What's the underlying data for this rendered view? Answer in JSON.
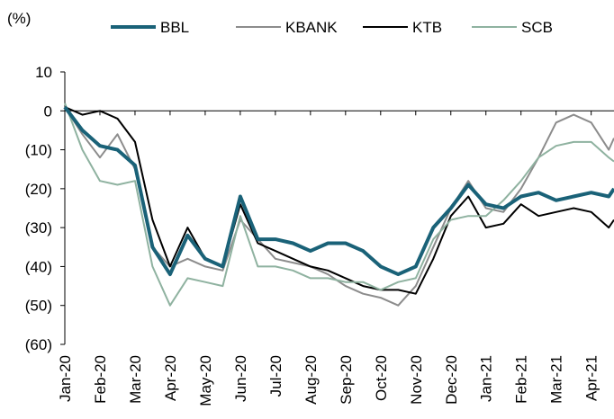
{
  "chart_data": {
    "type": "line",
    "y_label": "(%)",
    "x": [
      0,
      0.5,
      1,
      1.5,
      2,
      2.5,
      3,
      3.5,
      4,
      4.5,
      5,
      5.5,
      6,
      6.5,
      7,
      7.5,
      8,
      8.5,
      9,
      9.5,
      10,
      10.5,
      11,
      11.5,
      12,
      12.5,
      13,
      13.5,
      14,
      14.5,
      15,
      15.5,
      15.65
    ],
    "series": [
      {
        "name": "BBL",
        "color": "#1a6278",
        "values": [
          1,
          -5,
          -9,
          -10,
          -14,
          -35,
          -42,
          -32,
          -38,
          -40,
          -22,
          -33,
          -33,
          -34,
          -36,
          -34,
          -34,
          -36,
          -40,
          -42,
          -40,
          -30,
          -25,
          -19,
          -24,
          -25,
          -22,
          -21,
          -23,
          -22,
          -21,
          -22,
          -20
        ]
      },
      {
        "name": "KBANK",
        "color": "#8c8c8c",
        "values": [
          1,
          -6,
          -12,
          -6,
          -15,
          -35,
          -40,
          -38,
          -40,
          -41,
          -28,
          -33,
          -38,
          -39,
          -40,
          -42,
          -45,
          -47,
          -48,
          -50,
          -45,
          -35,
          -25,
          -18,
          -25,
          -26,
          -20,
          -12,
          -3,
          -1,
          -3,
          -10,
          -7
        ]
      },
      {
        "name": "KTB",
        "color": "#000000",
        "values": [
          1,
          -1,
          0,
          -2,
          -8,
          -28,
          -40,
          -30,
          -38,
          -40,
          -24,
          -34,
          -36,
          -38,
          -40,
          -41,
          -43,
          -45,
          -46,
          -46,
          -47,
          -38,
          -27,
          -22,
          -30,
          -29,
          -24,
          -27,
          -26,
          -25,
          -26,
          -30,
          -28
        ]
      },
      {
        "name": "SCB",
        "color": "#8fb2a0",
        "values": [
          2,
          -10,
          -18,
          -19,
          -18,
          -40,
          -50,
          -43,
          -44,
          -45,
          -27,
          -40,
          -40,
          -41,
          -43,
          -43,
          -44,
          -44,
          -46,
          -44,
          -43,
          -33,
          -28,
          -27,
          -27,
          -23,
          -18,
          -12,
          -9,
          -8,
          -8,
          -12,
          -13
        ]
      }
    ],
    "xlim": [
      0,
      15.65
    ],
    "xticks": [
      {
        "value": 0,
        "label": "Jan-20"
      },
      {
        "value": 1,
        "label": "Feb-20"
      },
      {
        "value": 2,
        "label": "Mar-20"
      },
      {
        "value": 3,
        "label": "Apr-20"
      },
      {
        "value": 4,
        "label": "May-20"
      },
      {
        "value": 5,
        "label": "Jun-20"
      },
      {
        "value": 6,
        "label": "Jul-20"
      },
      {
        "value": 7,
        "label": "Aug-20"
      },
      {
        "value": 8,
        "label": "Sep-20"
      },
      {
        "value": 9,
        "label": "Oct-20"
      },
      {
        "value": 10,
        "label": "Nov-20"
      },
      {
        "value": 11,
        "label": "Dec-20"
      },
      {
        "value": 12,
        "label": "Jan-21"
      },
      {
        "value": 13,
        "label": "Feb-21"
      },
      {
        "value": 14,
        "label": "Mar-21"
      },
      {
        "value": 15,
        "label": "Apr-21"
      }
    ],
    "ylim": [
      -60,
      10
    ],
    "yticks": [
      10,
      0,
      {
        "value": -10,
        "label": "(10)"
      },
      {
        "value": -20,
        "label": "(20)"
      },
      {
        "value": -30,
        "label": "(30)"
      },
      {
        "value": -40,
        "label": "(40)"
      },
      {
        "value": -50,
        "label": "(50)"
      },
      {
        "value": -60,
        "label": "(60)"
      }
    ],
    "grid": false
  }
}
